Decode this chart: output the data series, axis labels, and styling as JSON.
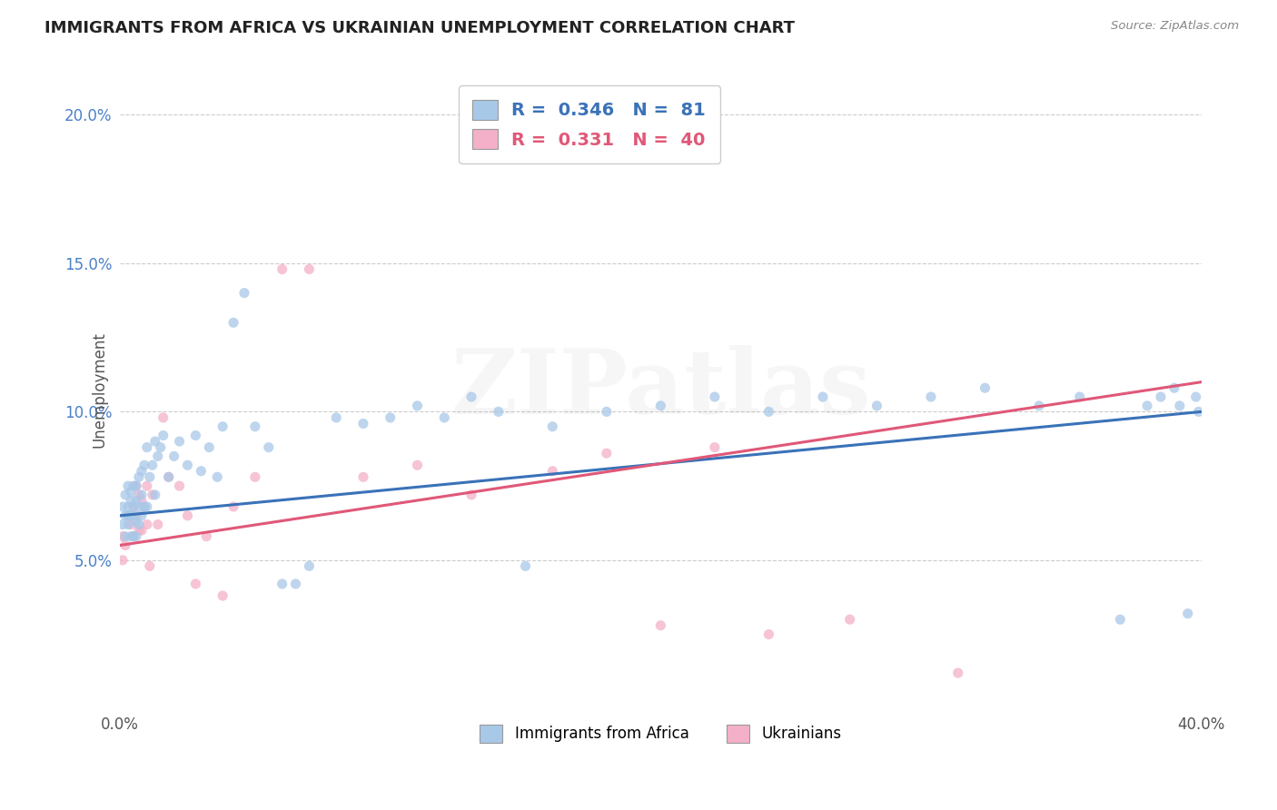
{
  "title": "IMMIGRANTS FROM AFRICA VS UKRAINIAN UNEMPLOYMENT CORRELATION CHART",
  "source_text": "Source: ZipAtlas.com",
  "ylabel": "Unemployment",
  "xlim": [
    0.0,
    0.4
  ],
  "ylim": [
    0.0,
    0.215
  ],
  "xticks": [
    0.0,
    0.05,
    0.1,
    0.15,
    0.2,
    0.25,
    0.3,
    0.35,
    0.4
  ],
  "xticklabels": [
    "0.0%",
    "",
    "",
    "",
    "",
    "",
    "",
    "",
    "40.0%"
  ],
  "ytick_positions": [
    0.05,
    0.1,
    0.15,
    0.2
  ],
  "yticklabels": [
    "5.0%",
    "10.0%",
    "15.0%",
    "20.0%"
  ],
  "blue_r": 0.346,
  "blue_n": 81,
  "pink_r": 0.331,
  "pink_n": 40,
  "blue_color": "#a8c8e8",
  "pink_color": "#f4b0c8",
  "blue_line_color": "#3a72b8",
  "pink_line_color": "#e05878",
  "legend_label_blue": "Immigrants from Africa",
  "legend_label_pink": "Ukrainians",
  "blue_scatter_x": [
    0.001,
    0.001,
    0.002,
    0.002,
    0.002,
    0.003,
    0.003,
    0.003,
    0.003,
    0.004,
    0.004,
    0.004,
    0.004,
    0.005,
    0.005,
    0.005,
    0.005,
    0.006,
    0.006,
    0.006,
    0.006,
    0.007,
    0.007,
    0.007,
    0.008,
    0.008,
    0.008,
    0.009,
    0.009,
    0.01,
    0.01,
    0.011,
    0.012,
    0.013,
    0.013,
    0.014,
    0.015,
    0.016,
    0.018,
    0.02,
    0.022,
    0.025,
    0.028,
    0.03,
    0.033,
    0.036,
    0.038,
    0.042,
    0.046,
    0.05,
    0.055,
    0.06,
    0.065,
    0.07,
    0.08,
    0.09,
    0.1,
    0.11,
    0.12,
    0.13,
    0.14,
    0.15,
    0.16,
    0.18,
    0.2,
    0.22,
    0.24,
    0.26,
    0.28,
    0.3,
    0.32,
    0.34,
    0.355,
    0.37,
    0.38,
    0.385,
    0.39,
    0.392,
    0.395,
    0.398,
    0.399
  ],
  "blue_scatter_y": [
    0.068,
    0.062,
    0.065,
    0.058,
    0.072,
    0.062,
    0.068,
    0.075,
    0.065,
    0.058,
    0.065,
    0.07,
    0.073,
    0.058,
    0.065,
    0.068,
    0.075,
    0.058,
    0.063,
    0.07,
    0.075,
    0.062,
    0.068,
    0.078,
    0.065,
    0.072,
    0.08,
    0.068,
    0.082,
    0.068,
    0.088,
    0.078,
    0.082,
    0.09,
    0.072,
    0.085,
    0.088,
    0.092,
    0.078,
    0.085,
    0.09,
    0.082,
    0.092,
    0.08,
    0.088,
    0.078,
    0.095,
    0.13,
    0.14,
    0.095,
    0.088,
    0.042,
    0.042,
    0.048,
    0.098,
    0.096,
    0.098,
    0.102,
    0.098,
    0.105,
    0.1,
    0.048,
    0.095,
    0.1,
    0.102,
    0.105,
    0.1,
    0.105,
    0.102,
    0.105,
    0.108,
    0.102,
    0.105,
    0.03,
    0.102,
    0.105,
    0.108,
    0.102,
    0.032,
    0.105,
    0.1
  ],
  "pink_scatter_x": [
    0.001,
    0.001,
    0.002,
    0.003,
    0.004,
    0.005,
    0.005,
    0.006,
    0.006,
    0.007,
    0.007,
    0.008,
    0.008,
    0.009,
    0.01,
    0.01,
    0.011,
    0.012,
    0.014,
    0.016,
    0.018,
    0.022,
    0.025,
    0.028,
    0.032,
    0.038,
    0.042,
    0.05,
    0.06,
    0.07,
    0.09,
    0.11,
    0.13,
    0.16,
    0.18,
    0.2,
    0.22,
    0.24,
    0.27,
    0.31
  ],
  "pink_scatter_y": [
    0.058,
    0.05,
    0.055,
    0.065,
    0.062,
    0.058,
    0.068,
    0.065,
    0.075,
    0.06,
    0.072,
    0.07,
    0.06,
    0.068,
    0.062,
    0.075,
    0.048,
    0.072,
    0.062,
    0.098,
    0.078,
    0.075,
    0.065,
    0.042,
    0.058,
    0.038,
    0.068,
    0.078,
    0.148,
    0.148,
    0.078,
    0.082,
    0.072,
    0.08,
    0.086,
    0.028,
    0.088,
    0.025,
    0.03,
    0.012
  ]
}
